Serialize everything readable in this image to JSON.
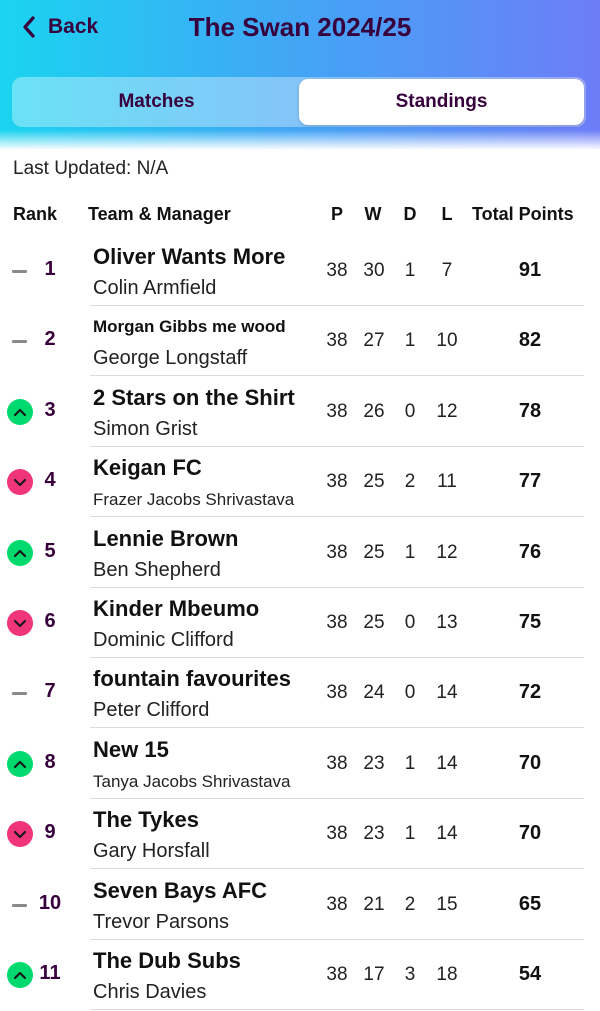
{
  "header": {
    "back_label": "Back",
    "title": "The Swan 2024/25"
  },
  "tabs": [
    {
      "label": "Matches",
      "active": false
    },
    {
      "label": "Standings",
      "active": true
    }
  ],
  "last_updated": "Last Updated: N/A",
  "columns": {
    "rank": "Rank",
    "team": "Team & Manager",
    "played": "P",
    "won": "W",
    "drawn": "D",
    "lost": "L",
    "points": "Total Points"
  },
  "colors": {
    "accent": "#37003c",
    "up": "#00d96e",
    "down": "#f0357b",
    "same": "#8a8a8a"
  },
  "standings": [
    {
      "rank": "1",
      "move": "same",
      "team": "Oliver Wants More",
      "manager": "Colin Armfield",
      "p": "38",
      "w": "30",
      "d": "1",
      "l": "7",
      "points": "91"
    },
    {
      "rank": "2",
      "move": "same",
      "team": "Morgan Gibbs me wood",
      "manager": "George Longstaff",
      "p": "38",
      "w": "27",
      "d": "1",
      "l": "10",
      "points": "82"
    },
    {
      "rank": "3",
      "move": "up",
      "team": "2 Stars on the Shirt",
      "manager": "Simon Grist",
      "p": "38",
      "w": "26",
      "d": "0",
      "l": "12",
      "points": "78"
    },
    {
      "rank": "4",
      "move": "down",
      "team": "Keigan FC",
      "manager": "Frazer Jacobs Shrivastava",
      "p": "38",
      "w": "25",
      "d": "2",
      "l": "11",
      "points": "77"
    },
    {
      "rank": "5",
      "move": "up",
      "team": "Lennie Brown",
      "manager": "Ben Shepherd",
      "p": "38",
      "w": "25",
      "d": "1",
      "l": "12",
      "points": "76"
    },
    {
      "rank": "6",
      "move": "down",
      "team": "Kinder Mbeumo",
      "manager": "Dominic Clifford",
      "p": "38",
      "w": "25",
      "d": "0",
      "l": "13",
      "points": "75"
    },
    {
      "rank": "7",
      "move": "same",
      "team": "fountain favourites",
      "manager": "Peter Clifford",
      "p": "38",
      "w": "24",
      "d": "0",
      "l": "14",
      "points": "72"
    },
    {
      "rank": "8",
      "move": "up",
      "team": "New 15",
      "manager": "Tanya Jacobs Shrivastava",
      "p": "38",
      "w": "23",
      "d": "1",
      "l": "14",
      "points": "70"
    },
    {
      "rank": "9",
      "move": "down",
      "team": "The Tykes",
      "manager": "Gary Horsfall",
      "p": "38",
      "w": "23",
      "d": "1",
      "l": "14",
      "points": "70"
    },
    {
      "rank": "10",
      "move": "same",
      "team": "Seven Bays AFC",
      "manager": "Trevor Parsons",
      "p": "38",
      "w": "21",
      "d": "2",
      "l": "15",
      "points": "65"
    },
    {
      "rank": "11",
      "move": "up",
      "team": "The Dub Subs",
      "manager": "Chris Davies",
      "p": "38",
      "w": "17",
      "d": "3",
      "l": "18",
      "points": "54"
    }
  ]
}
